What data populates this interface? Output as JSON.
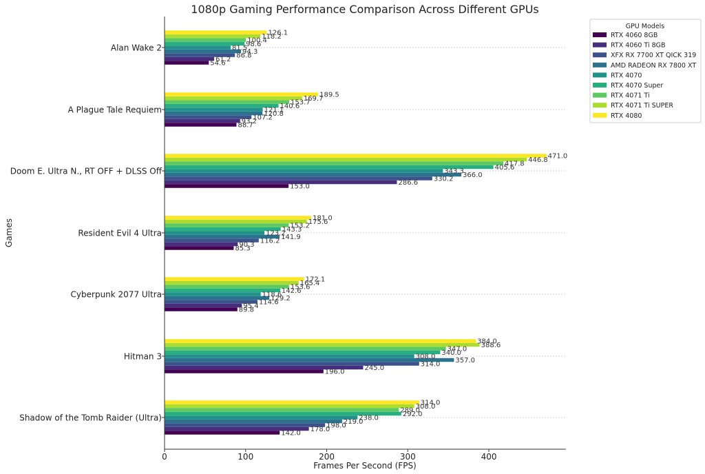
{
  "chart_data": {
    "type": "bar",
    "orientation": "horizontal",
    "title": "1080p Gaming Performance Comparison Across Different GPUs",
    "xlabel": "Frames Per Second (FPS)",
    "ylabel": "Games",
    "xlim": [
      0,
      495
    ],
    "xticks": [
      "0",
      "100",
      "200",
      "300",
      "400"
    ],
    "grid": "horizontal dotted",
    "legend": {
      "title": "GPU Models",
      "placement": "outside right"
    },
    "categories": [
      "Alan Wake 2",
      "A Plague Tale Requiem",
      "Doom E. Ultra N., RT OFF + DLSS Off",
      "Resident Evil 4 Ultra",
      "Cyberpunk 2077 Ultra",
      "Hitman 3",
      "Shadow of the Tomb Raider (Ultra)"
    ],
    "series": [
      {
        "name": "RTX 4060 8GB",
        "color": "#440154",
        "values": [
          54.6,
          88.7,
          153.0,
          85.3,
          89.8,
          196.0,
          142.0
        ]
      },
      {
        "name": "RTX 4060 Ti 8GB",
        "color": "#472d7b",
        "values": [
          61.2,
          93.2,
          286.6,
          90.3,
          95.4,
          245.0,
          178.0
        ]
      },
      {
        "name": "XFX RX 7700 XT QICK 319",
        "color": "#3b528b",
        "values": [
          86.8,
          107.2,
          330.2,
          116.2,
          114.6,
          314.0,
          198.0
        ]
      },
      {
        "name": "AMD RADEON RX 7800 XT",
        "color": "#2c728e",
        "values": [
          94.3,
          120.8,
          366.0,
          141.9,
          129.2,
          357.0,
          219.0
        ]
      },
      {
        "name": "RTX 4070",
        "color": "#21918c",
        "values": [
          81.5,
          121.1,
          343.3,
          123.2,
          118.6,
          308.0,
          238.0
        ]
      },
      {
        "name": "RTX 4070 Super",
        "color": "#28ae80",
        "values": [
          98.6,
          140.6,
          405.6,
          143.3,
          142.6,
          340.0,
          292.0
        ]
      },
      {
        "name": "RTX 4071 Ti",
        "color": "#5ec962",
        "values": [
          100.4,
          153.7,
          417.8,
          153.2,
          153.6,
          347.0,
          289.0
        ]
      },
      {
        "name": "RTX 4071 Ti SUPER",
        "color": "#addc30",
        "values": [
          118.2,
          169.7,
          446.8,
          175.6,
          165.4,
          388.6,
          308.0
        ]
      },
      {
        "name": "RTX 4080",
        "color": "#fde725",
        "values": [
          126.1,
          189.5,
          471.0,
          181.0,
          172.1,
          384.0,
          314.0
        ]
      }
    ]
  }
}
